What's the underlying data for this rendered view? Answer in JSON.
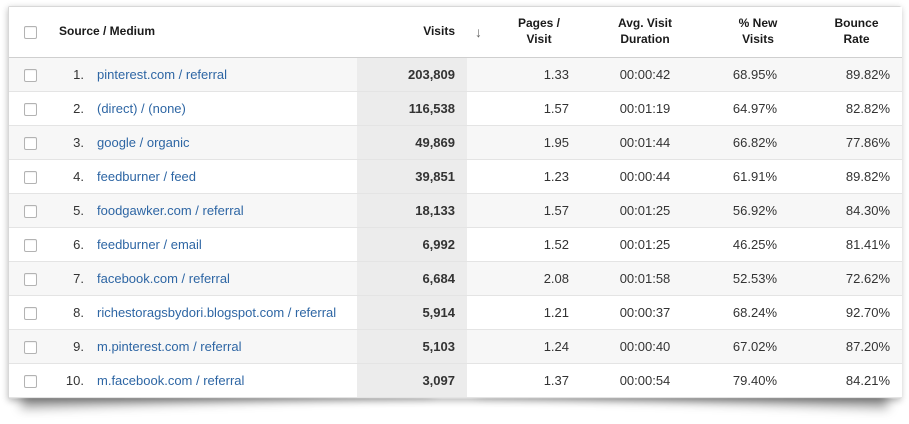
{
  "header": {
    "columns": [
      {
        "id": "source_medium",
        "label": "Source / Medium"
      },
      {
        "id": "visits",
        "label": "Visits"
      },
      {
        "id": "pages_per_visit",
        "label": "Pages /\nVisit"
      },
      {
        "id": "avg_visit_duration",
        "label": "Avg. Visit\nDuration"
      },
      {
        "id": "pct_new_visits",
        "label": "% New\nVisits"
      },
      {
        "id": "bounce_rate",
        "label": "Bounce\nRate"
      }
    ],
    "sort": {
      "column": "visits",
      "direction": "descending",
      "arrow": "↓"
    }
  },
  "rows": [
    {
      "rank": "1.",
      "source_medium": "pinterest.com / referral",
      "visits": "203,809",
      "pages_per_visit": "1.33",
      "avg_visit_duration": "00:00:42",
      "pct_new_visits": "68.95%",
      "bounce_rate": "89.82%"
    },
    {
      "rank": "2.",
      "source_medium": "(direct) / (none)",
      "visits": "116,538",
      "pages_per_visit": "1.57",
      "avg_visit_duration": "00:01:19",
      "pct_new_visits": "64.97%",
      "bounce_rate": "82.82%"
    },
    {
      "rank": "3.",
      "source_medium": "google / organic",
      "visits": "49,869",
      "pages_per_visit": "1.95",
      "avg_visit_duration": "00:01:44",
      "pct_new_visits": "66.82%",
      "bounce_rate": "77.86%"
    },
    {
      "rank": "4.",
      "source_medium": "feedburner / feed",
      "visits": "39,851",
      "pages_per_visit": "1.23",
      "avg_visit_duration": "00:00:44",
      "pct_new_visits": "61.91%",
      "bounce_rate": "89.82%"
    },
    {
      "rank": "5.",
      "source_medium": "foodgawker.com / referral",
      "visits": "18,133",
      "pages_per_visit": "1.57",
      "avg_visit_duration": "00:01:25",
      "pct_new_visits": "56.92%",
      "bounce_rate": "84.30%"
    },
    {
      "rank": "6.",
      "source_medium": "feedburner / email",
      "visits": "6,992",
      "pages_per_visit": "1.52",
      "avg_visit_duration": "00:01:25",
      "pct_new_visits": "46.25%",
      "bounce_rate": "81.41%"
    },
    {
      "rank": "7.",
      "source_medium": "facebook.com / referral",
      "visits": "6,684",
      "pages_per_visit": "2.08",
      "avg_visit_duration": "00:01:58",
      "pct_new_visits": "52.53%",
      "bounce_rate": "72.62%"
    },
    {
      "rank": "8.",
      "source_medium": "richestoragsbydori.blogspot.com / referral",
      "visits": "5,914",
      "pages_per_visit": "1.21",
      "avg_visit_duration": "00:00:37",
      "pct_new_visits": "68.24%",
      "bounce_rate": "92.70%"
    },
    {
      "rank": "9.",
      "source_medium": "m.pinterest.com / referral",
      "visits": "5,103",
      "pages_per_visit": "1.24",
      "avg_visit_duration": "00:00:40",
      "pct_new_visits": "67.02%",
      "bounce_rate": "87.20%"
    },
    {
      "rank": "10.",
      "source_medium": "m.facebook.com / referral",
      "visits": "3,097",
      "pages_per_visit": "1.37",
      "avg_visit_duration": "00:00:54",
      "pct_new_visits": "79.40%",
      "bounce_rate": "84.21%"
    }
  ],
  "colors": {
    "link": "#2e66a4",
    "visits_column_bg": "#ececec",
    "row_alt_bg": "#f7f7f7",
    "header_text": "#1a1a1a",
    "body_text": "#333333",
    "row_border": "#e4e4e4"
  }
}
